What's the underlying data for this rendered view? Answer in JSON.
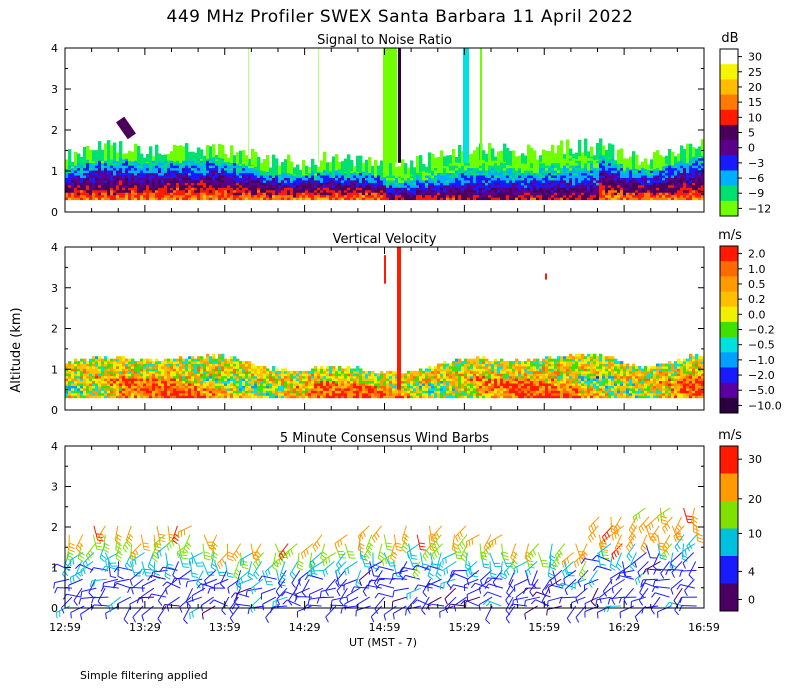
{
  "title": "449 MHz Profiler SWEX Santa Barbara 11 April 2022",
  "y_axis_label": "Altitude (km)",
  "x_axis_label": "UT  (MST - 7)",
  "footer_note": "Simple filtering applied",
  "x_ticks": [
    "12:59",
    "13:29",
    "13:59",
    "14:29",
    "14:59",
    "15:29",
    "15:59",
    "16:29",
    "16:59"
  ],
  "y_ticks": [
    "0",
    "1",
    "2",
    "3",
    "4"
  ],
  "chart_data": [
    {
      "type": "heatmap",
      "title": "Signal to Noise Ratio",
      "unit": "dB",
      "xlim": [
        "12:59",
        "16:59"
      ],
      "ylim": [
        0,
        4
      ],
      "colorbar": {
        "labels": [
          "30",
          "25",
          "20",
          "15",
          "10",
          "5",
          "0",
          "−3",
          "−6",
          "−9",
          "−12"
        ],
        "colors": [
          "#ffffff",
          "#f5f500",
          "#ffbd00",
          "#ff7a00",
          "#ff1a00",
          "#4a005a",
          "#5a008a",
          "#1a1aff",
          "#00b0ff",
          "#00e070",
          "#70ff00"
        ]
      }
    },
    {
      "type": "heatmap",
      "title": "Vertical Velocity",
      "unit": "m/s",
      "xlim": [
        "12:59",
        "16:59"
      ],
      "ylim": [
        0,
        4
      ],
      "colorbar": {
        "labels": [
          "2.0",
          "1.0",
          "0.5",
          "0.2",
          "0.0",
          "−0.2",
          "−0.5",
          "−1.0",
          "−2.0",
          "−5.0",
          "−10.0"
        ],
        "colors": [
          "#ff1a00",
          "#ff6a00",
          "#ff9a00",
          "#ffc000",
          "#f0f000",
          "#40e000",
          "#00e0e0",
          "#00a0ff",
          "#1a1aff",
          "#5a00a0",
          "#2a0040"
        ]
      }
    },
    {
      "type": "wind_barbs",
      "title": "5 Minute Consensus Wind Barbs",
      "unit": "m/s",
      "xlim": [
        "12:59",
        "16:59"
      ],
      "ylim": [
        0,
        4
      ],
      "colorbar": {
        "labels": [
          "30",
          "20",
          "10",
          "4",
          "0"
        ],
        "colors": [
          "#ff1a00",
          "#ff9a00",
          "#80e000",
          "#00c0e0",
          "#1a1aff",
          "#4a0060"
        ]
      }
    }
  ]
}
